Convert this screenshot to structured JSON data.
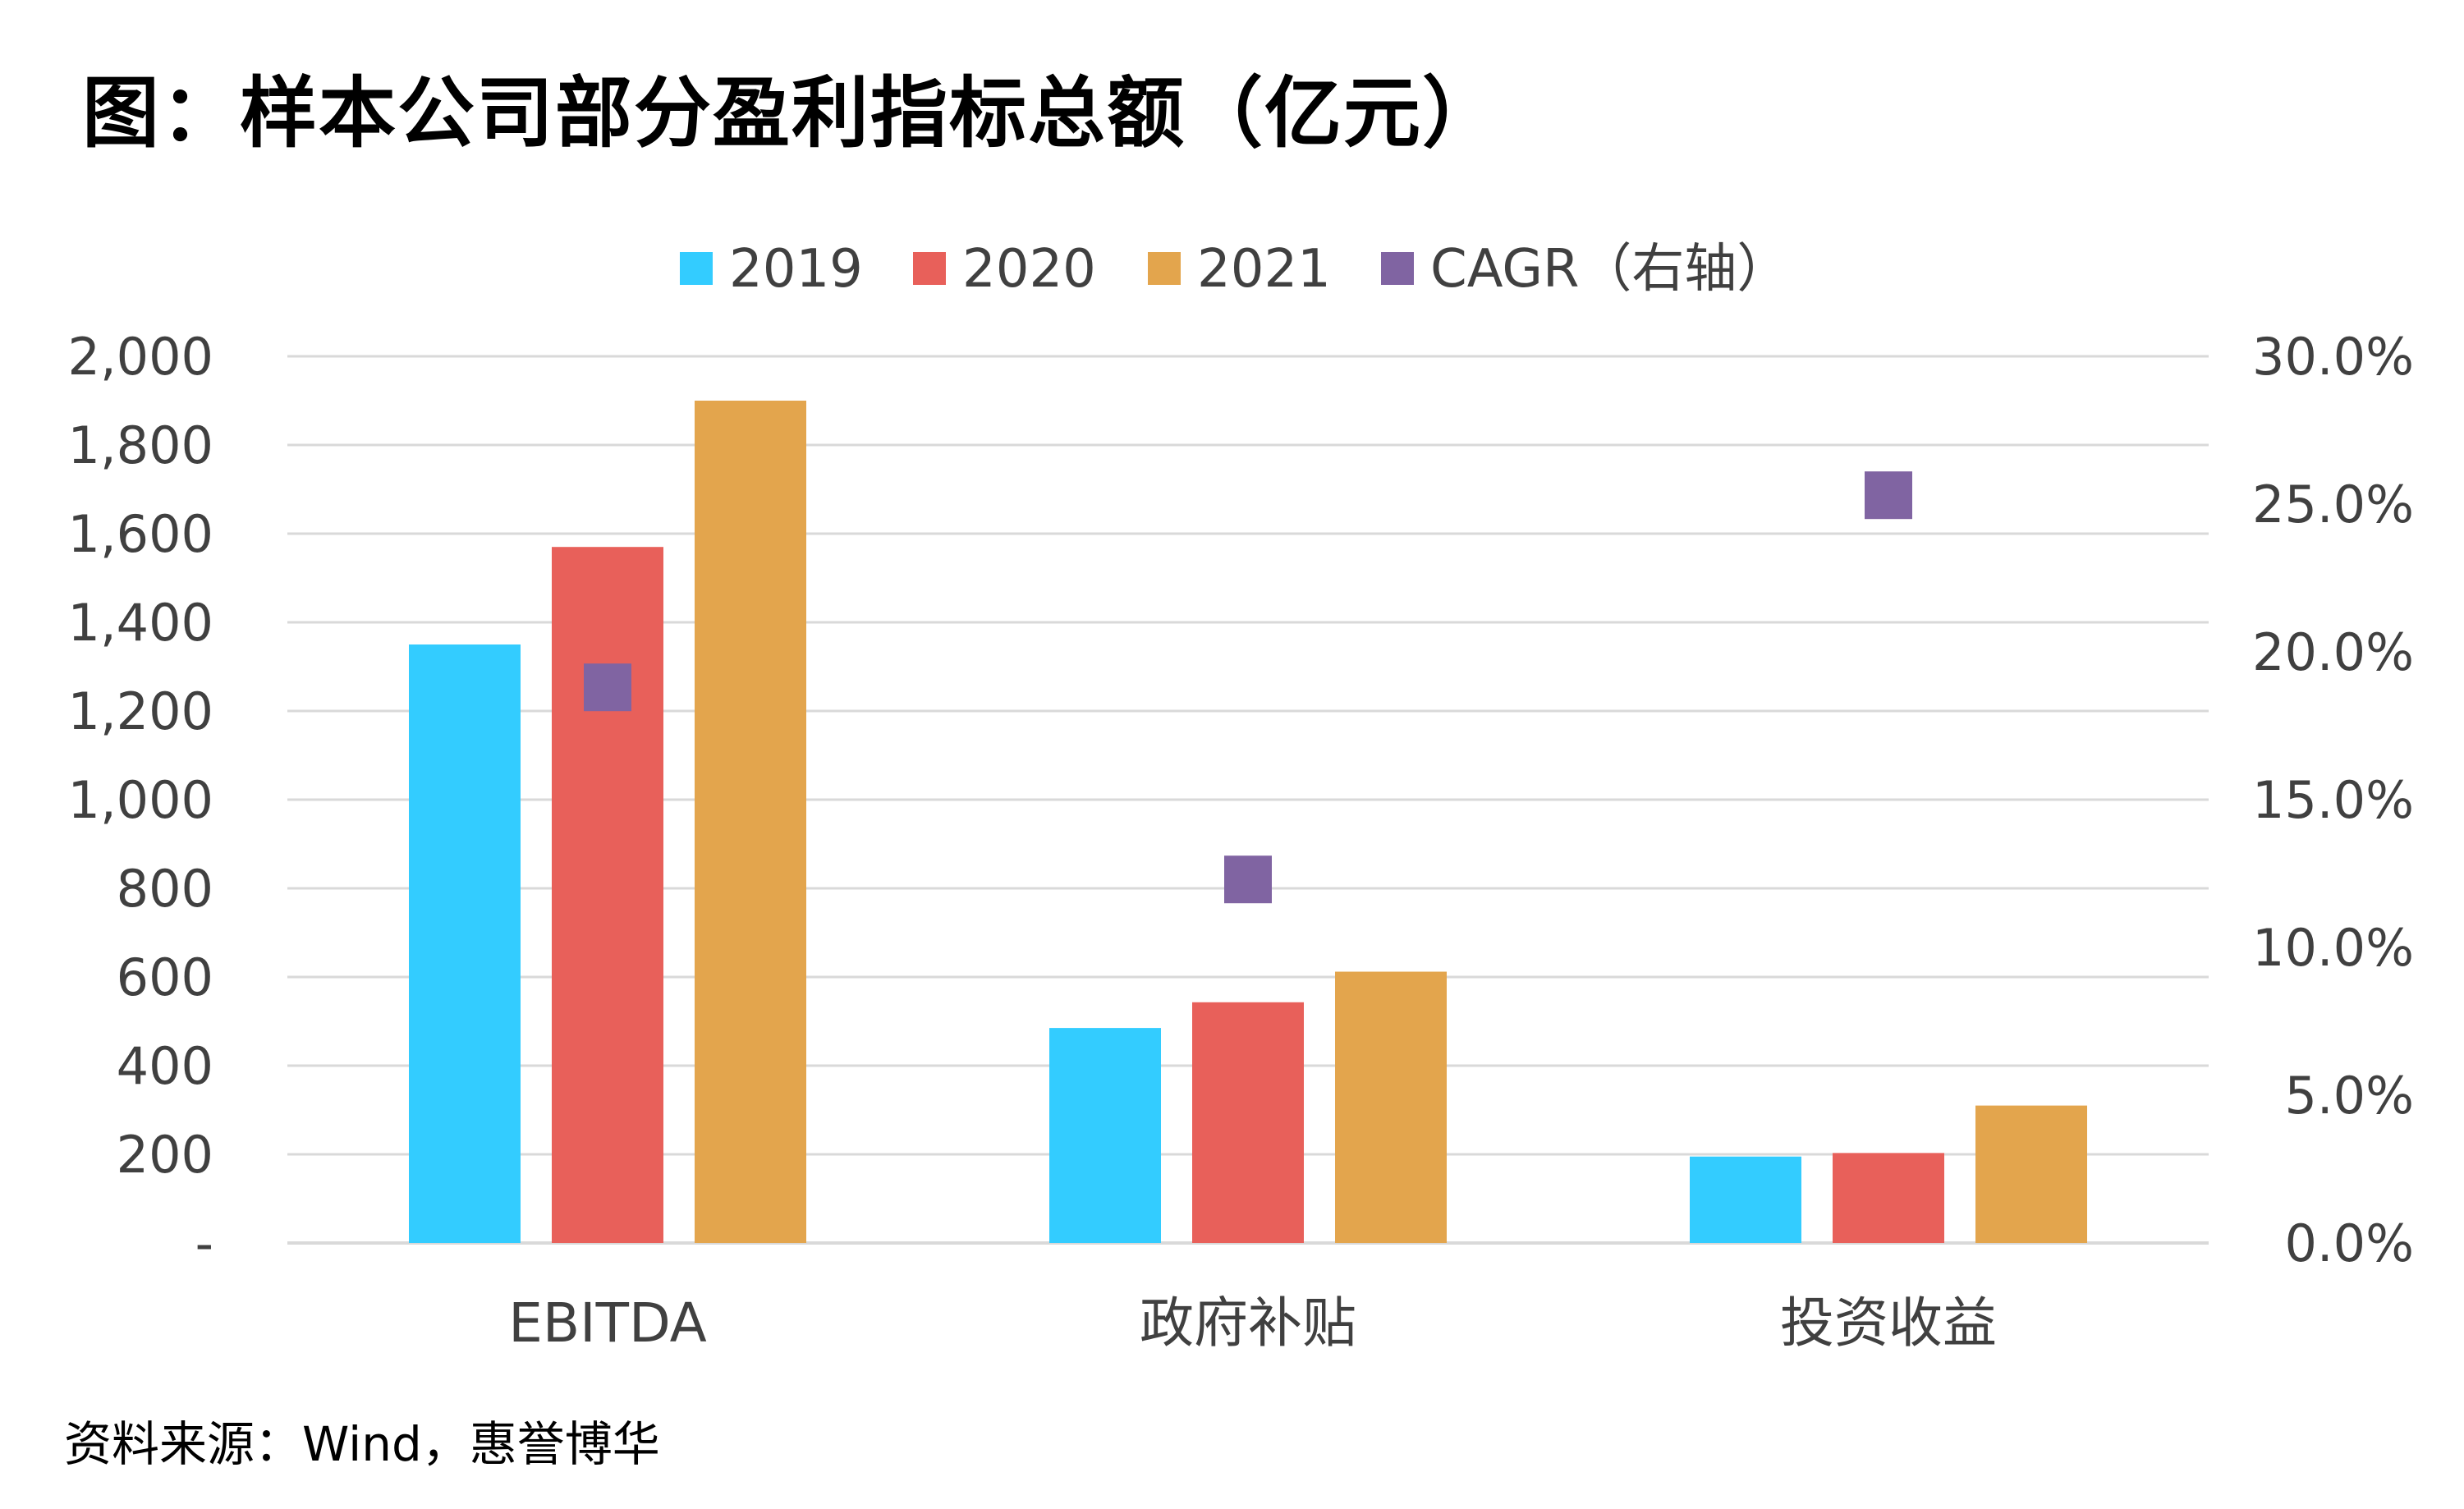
{
  "title": "图：样本公司部分盈利指标总额（亿元）",
  "source": "资料来源：Wind，惠誉博华",
  "colors": {
    "2019": "#33ccff",
    "2020": "#e8605a",
    "2021": "#e3a54d",
    "cagr": "#8064a2",
    "grid": "#d9d9d9",
    "text": "#404040"
  },
  "chart_data": {
    "type": "bar",
    "categories": [
      "EBITDA",
      "政府补贴",
      "投资收益"
    ],
    "series": [
      {
        "name": "2019",
        "values": [
          1350,
          485,
          195
        ]
      },
      {
        "name": "2020",
        "values": [
          1570,
          543,
          203
        ]
      },
      {
        "name": "2021",
        "values": [
          1900,
          612,
          310
        ]
      }
    ],
    "secondary_series": {
      "name": "CAGR（右轴）",
      "type": "scatter",
      "values": [
        18.8,
        12.3,
        25.3
      ]
    },
    "ylim": [
      0,
      2000
    ],
    "y_ticks": [
      0,
      200,
      400,
      600,
      800,
      1000,
      1200,
      1400,
      1600,
      1800,
      2000
    ],
    "y_tick_labels": [
      "-",
      "200",
      "400",
      "600",
      "800",
      "1,000",
      "1,200",
      "1,400",
      "1,600",
      "1,800",
      "2,000"
    ],
    "y2lim": [
      0,
      30
    ],
    "y2_ticks": [
      0,
      5,
      10,
      15,
      20,
      25,
      30
    ],
    "y2_tick_labels": [
      "0.0%",
      "5.0%",
      "10.0%",
      "15.0%",
      "20.0%",
      "25.0%",
      "30.0%"
    ],
    "legend": [
      "2019",
      "2020",
      "2021",
      "CAGR（右轴）"
    ],
    "legend_position": "top",
    "grid": true
  }
}
